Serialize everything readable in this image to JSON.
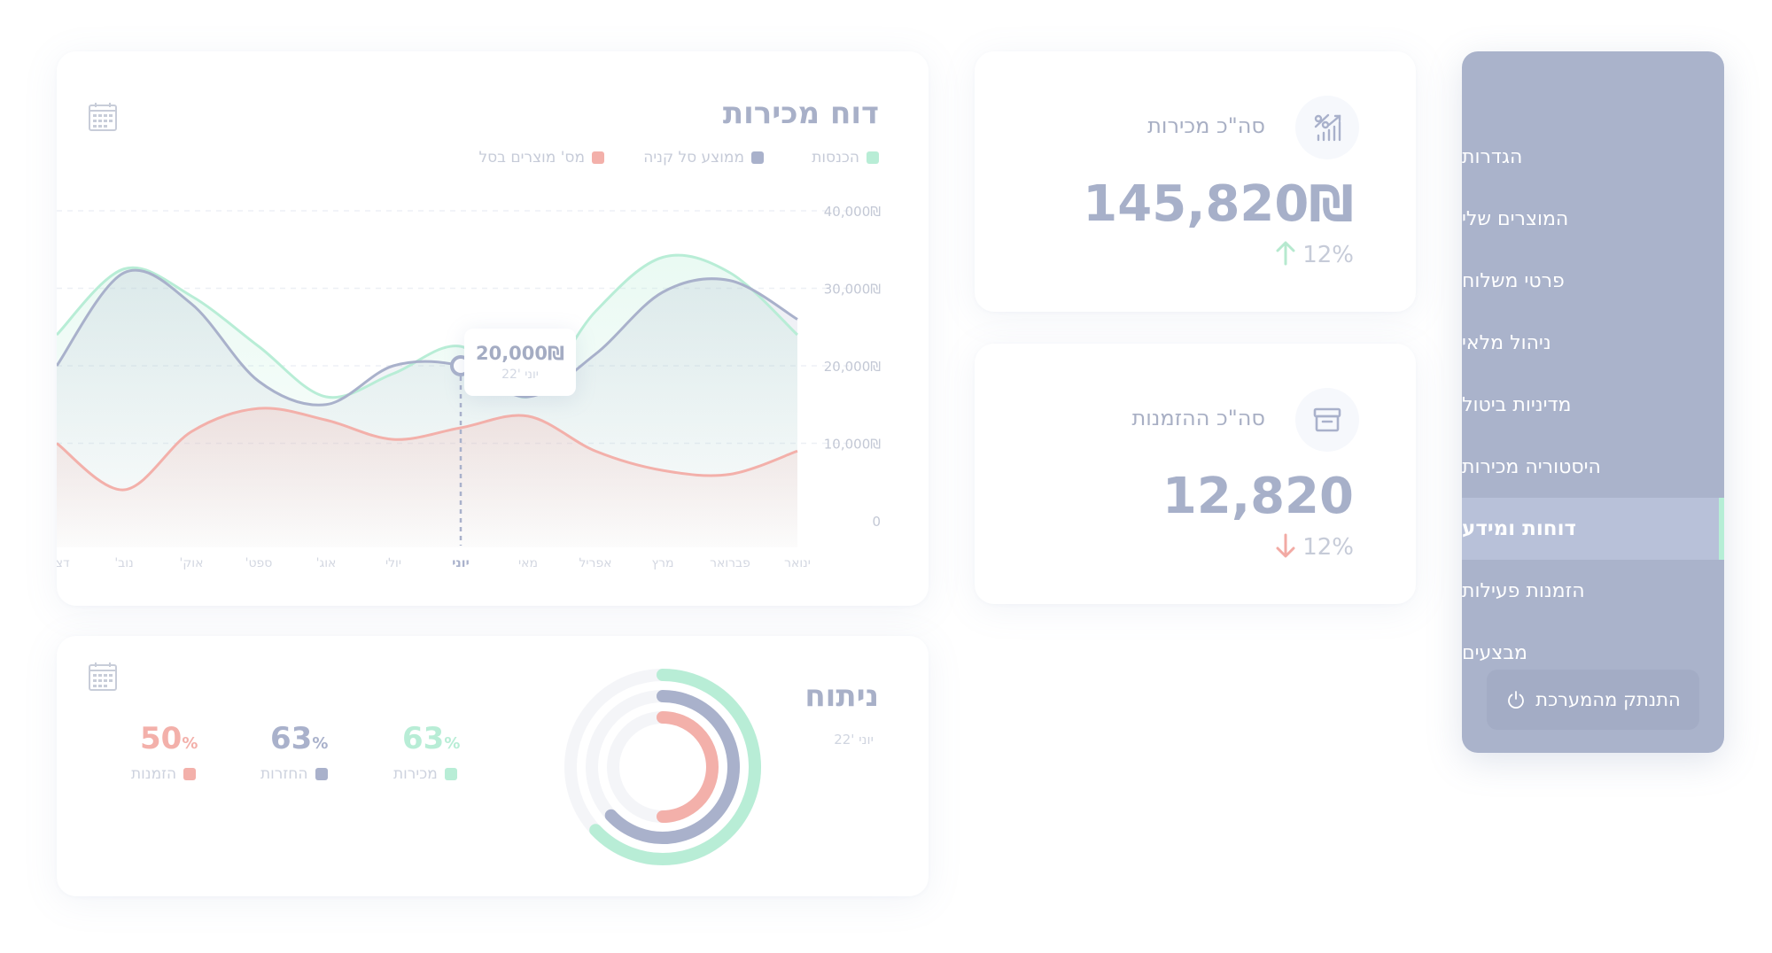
{
  "sidebar": {
    "items": [
      {
        "label": "הגדרות"
      },
      {
        "label": "המוצרים שלי"
      },
      {
        "label": "פרטי משלוח"
      },
      {
        "label": "ניהול מלאי"
      },
      {
        "label": "מדיניות ביטול"
      },
      {
        "label": "היסטוריה מכירות"
      },
      {
        "label": "דוחות ומידע",
        "active": true
      },
      {
        "label": "הזמנות פעילות"
      },
      {
        "label": "מבצעים"
      }
    ],
    "logout_label": "התנתק מהמערכת"
  },
  "stats": {
    "sales": {
      "title": "סה\"כ מכירות",
      "value": "145,820₪",
      "change": "12%",
      "direction": "up",
      "icon": "chart-percent-icon"
    },
    "orders": {
      "title": "סה\"כ ההזמנות",
      "value": "12,820",
      "change": "12%",
      "direction": "down",
      "icon": "archive-box-icon"
    }
  },
  "sales_report": {
    "title": "דוח מכירות",
    "legend": [
      {
        "label": "הכנסות",
        "color": "#b8edd6"
      },
      {
        "label": "ממוצע סל קניה",
        "color": "#a9b1cb"
      },
      {
        "label": "מס' מוצרים בסל",
        "color": "#f3b0aa"
      }
    ],
    "tooltip": {
      "value": "20,000₪",
      "date": "יוני '22"
    },
    "highlight_month": "יוני"
  },
  "chart_data": {
    "type": "area",
    "title": "דוח מכירות",
    "categories": [
      "ינואר",
      "פברואר",
      "מרץ",
      "אפריל",
      "מאי",
      "יוני",
      "יולי",
      "אוג'",
      "ספט'",
      "אוק'",
      "נוב'",
      "דצמ'"
    ],
    "y_ticks": [
      "40,000₪",
      "30,000₪",
      "20,000₪",
      "10,000₪",
      "0"
    ],
    "ylim": [
      0,
      40000
    ],
    "x_direction": "right-to-left",
    "series": [
      {
        "name": "הכנסות",
        "color": "#b8edd6",
        "values": [
          24000,
          32000,
          34000,
          27000,
          16000,
          22500,
          19000,
          16000,
          22500,
          29000,
          32500,
          24000
        ]
      },
      {
        "name": "ממוצע סל קניה",
        "color": "#a9b1cb",
        "values": [
          26000,
          31000,
          29500,
          21500,
          16000,
          20000,
          20000,
          15000,
          18000,
          28000,
          32000,
          20000
        ]
      },
      {
        "name": "מס' מוצרים בסל",
        "color": "#f3b0aa",
        "values": [
          9000,
          6000,
          6500,
          9000,
          13500,
          12000,
          10500,
          13000,
          14500,
          11500,
          4000,
          10000
        ]
      }
    ]
  },
  "analysis": {
    "title": "ניתוח",
    "subtitle": "יוני '22",
    "metrics": [
      {
        "label": "מכירות",
        "value": "63",
        "unit": "%",
        "color": "#b8edd6",
        "fraction": 0.63
      },
      {
        "label": "החזרות",
        "value": "63",
        "unit": "%",
        "color": "#a9b1cb",
        "fraction": 0.63
      },
      {
        "label": "הזמנות",
        "value": "50",
        "unit": "%",
        "color": "#f3b0aa",
        "fraction": 0.5
      }
    ]
  }
}
